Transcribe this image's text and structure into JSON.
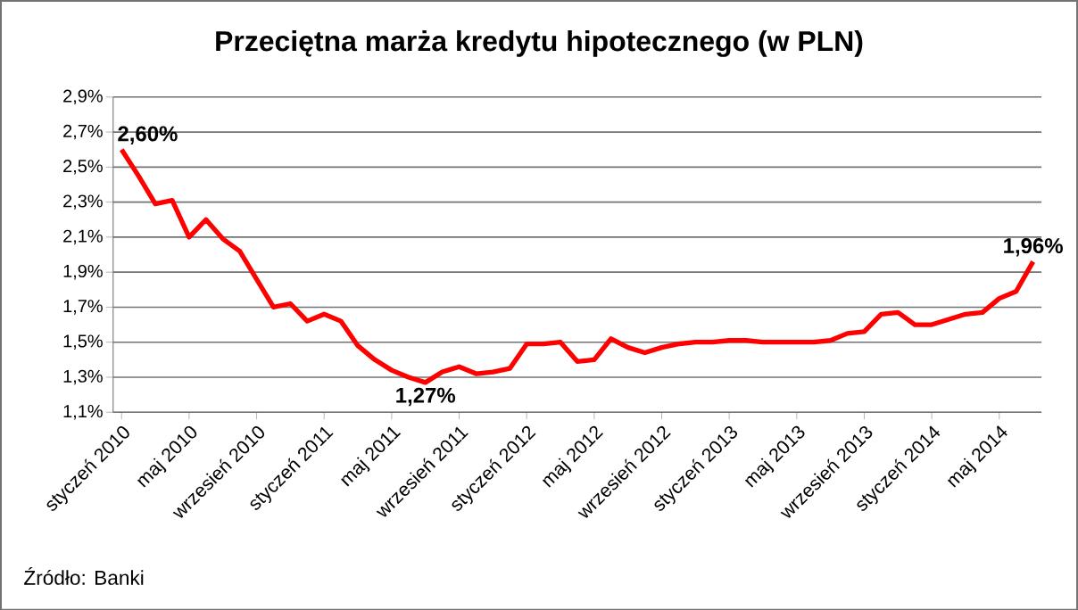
{
  "chart_data": {
    "type": "line",
    "title": "Przeciętna marża kredytu hipotecznego (w PLN)",
    "categories": [
      "styczeń 2010",
      null,
      null,
      null,
      "maj 2010",
      null,
      null,
      null,
      "wrzesień 2010",
      null,
      null,
      null,
      "styczeń 2011",
      null,
      null,
      null,
      "maj 2011",
      null,
      null,
      null,
      "wrzesień 2011",
      null,
      null,
      null,
      "styczeń 2012",
      null,
      null,
      null,
      "maj 2012",
      null,
      null,
      null,
      "wrzesień 2012",
      null,
      null,
      null,
      "styczeń 2013",
      null,
      null,
      null,
      "maj 2013",
      null,
      null,
      null,
      "wrzesień 2013",
      null,
      null,
      null,
      "styczeń 2014",
      null,
      null,
      null,
      "maj 2014",
      null,
      null
    ],
    "series": [
      {
        "color": "#ff0000",
        "values": [
          2.6,
          2.45,
          2.29,
          2.31,
          2.1,
          2.2,
          2.09,
          2.02,
          1.86,
          1.7,
          1.72,
          1.62,
          1.66,
          1.62,
          1.48,
          1.4,
          1.34,
          1.3,
          1.27,
          1.33,
          1.36,
          1.32,
          1.33,
          1.35,
          1.49,
          1.49,
          1.5,
          1.39,
          1.4,
          1.52,
          1.47,
          1.44,
          1.47,
          1.49,
          1.5,
          1.5,
          1.51,
          1.51,
          1.5,
          1.5,
          1.5,
          1.5,
          1.51,
          1.55,
          1.56,
          1.66,
          1.67,
          1.6,
          1.6,
          1.63,
          1.66,
          1.67,
          1.75,
          1.79,
          1.96
        ],
        "value_labels": [
          "2,60%",
          null,
          null,
          null,
          null,
          null,
          null,
          null,
          null,
          null,
          null,
          null,
          null,
          null,
          null,
          null,
          null,
          null,
          "1,27%",
          null,
          null,
          null,
          null,
          null,
          null,
          null,
          null,
          null,
          null,
          null,
          null,
          null,
          null,
          null,
          null,
          null,
          null,
          null,
          null,
          null,
          null,
          null,
          null,
          null,
          null,
          null,
          null,
          null,
          null,
          null,
          null,
          null,
          null,
          null,
          "1,96%"
        ]
      }
    ],
    "ylim": [
      1.1,
      2.9
    ],
    "yticks": [
      {
        "value": 1.1,
        "label": "1,1%"
      },
      {
        "value": 1.3,
        "label": "1,3%"
      },
      {
        "value": 1.5,
        "label": "1,5%"
      },
      {
        "value": 1.7,
        "label": "1,7%"
      },
      {
        "value": 1.9,
        "label": "1,9%"
      },
      {
        "value": 2.1,
        "label": "2,1%"
      },
      {
        "value": 2.3,
        "label": "2,3%"
      },
      {
        "value": 2.5,
        "label": "2,5%"
      },
      {
        "value": 2.7,
        "label": "2,7%"
      },
      {
        "value": 2.9,
        "label": "2,9%"
      }
    ],
    "grid": "y",
    "marker": "none",
    "line_style": "solid",
    "annotations": [
      "Źródło: Banki"
    ]
  }
}
